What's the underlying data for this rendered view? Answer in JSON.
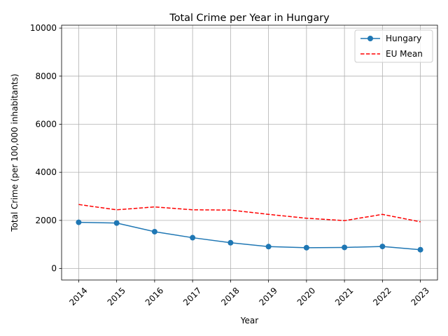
{
  "chart_data": {
    "type": "line",
    "title": "Total Crime per Year in Hungary",
    "xlabel": "Year",
    "ylabel": "Total Crime (per 100,000 inhabitants)",
    "categories": [
      "2014",
      "2015",
      "2016",
      "2017",
      "2018",
      "2019",
      "2020",
      "2021",
      "2022",
      "2023"
    ],
    "ylim": [
      -480,
      10120
    ],
    "yticks": [
      0,
      2000,
      4000,
      6000,
      8000,
      10000
    ],
    "grid": true,
    "legend_position": "top-right",
    "series": [
      {
        "name": "Hungary",
        "values": [
          1920,
          1890,
          1530,
          1280,
          1070,
          910,
          865,
          875,
          915,
          780
        ],
        "color": "#1f77b4",
        "style": "solid",
        "marker": "circle"
      },
      {
        "name": "EU Mean",
        "values": [
          2660,
          2440,
          2560,
          2440,
          2430,
          2250,
          2090,
          1990,
          2250,
          1940
        ],
        "color": "#ff0000",
        "style": "dashed",
        "marker": "none"
      }
    ]
  }
}
